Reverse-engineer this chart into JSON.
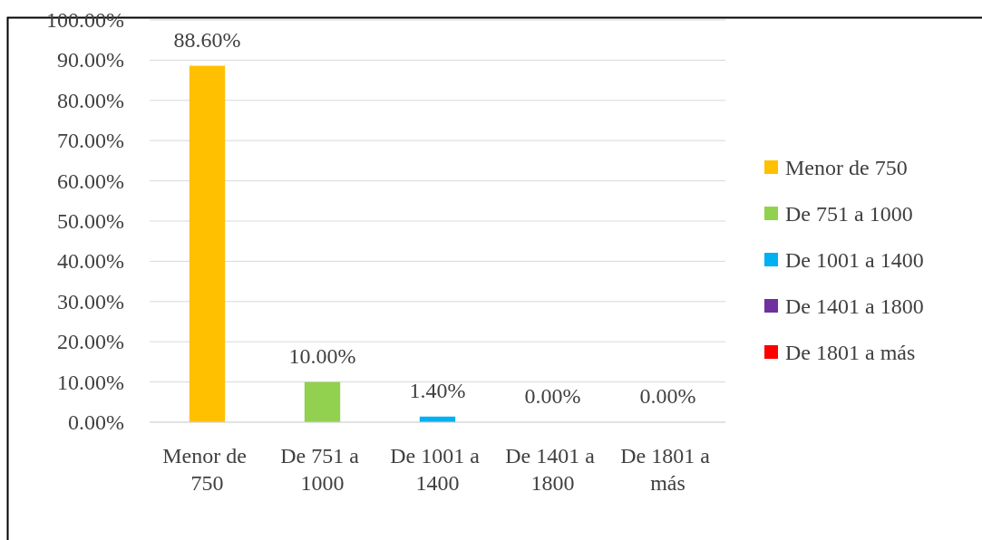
{
  "chart_data": {
    "type": "bar",
    "categories": [
      "Menor de 750",
      "De 751 a 1000",
      "De 1001 a 1400",
      "De 1401 a 1800",
      "De 1801 a más"
    ],
    "stacked": true,
    "series": [
      {
        "name": "Menor de 750",
        "color": "#ffc000",
        "values": [
          88.6,
          null,
          null,
          null,
          null
        ],
        "value_labels": [
          "88.60%",
          null,
          null,
          null,
          null
        ]
      },
      {
        "name": "De 751 a 1000",
        "color": "#92d050",
        "values": [
          null,
          10.0,
          null,
          null,
          null
        ],
        "value_labels": [
          null,
          "10.00%",
          null,
          null,
          null
        ]
      },
      {
        "name": "De 1001 a 1400",
        "color": "#00b0f0",
        "values": [
          null,
          null,
          1.4,
          null,
          null
        ],
        "value_labels": [
          null,
          null,
          "1.40%",
          null,
          null
        ]
      },
      {
        "name": "De 1401 a 1800",
        "color": "#7030a0",
        "values": [
          null,
          null,
          null,
          0.0,
          null
        ],
        "value_labels": [
          null,
          null,
          null,
          "0.00%",
          null
        ]
      },
      {
        "name": "De 1801 a más",
        "color": "#ff0000",
        "values": [
          null,
          null,
          null,
          null,
          0.0
        ],
        "value_labels": [
          null,
          null,
          null,
          null,
          "0.00%"
        ]
      }
    ],
    "ylim": [
      0,
      100
    ],
    "yticks": [
      {
        "value": 0,
        "label": "0.00%"
      },
      {
        "value": 10,
        "label": "10.00%"
      },
      {
        "value": 20,
        "label": "20.00%"
      },
      {
        "value": 30,
        "label": "30.00%"
      },
      {
        "value": 40,
        "label": "40.00%"
      },
      {
        "value": 50,
        "label": "50.00%"
      },
      {
        "value": 60,
        "label": "60.00%"
      },
      {
        "value": 70,
        "label": "70.00%"
      },
      {
        "value": 80,
        "label": "80.00%"
      },
      {
        "value": 90,
        "label": "90.00%"
      },
      {
        "value": 100,
        "label": "100.00%"
      }
    ],
    "grid": "y",
    "legend": "right"
  }
}
